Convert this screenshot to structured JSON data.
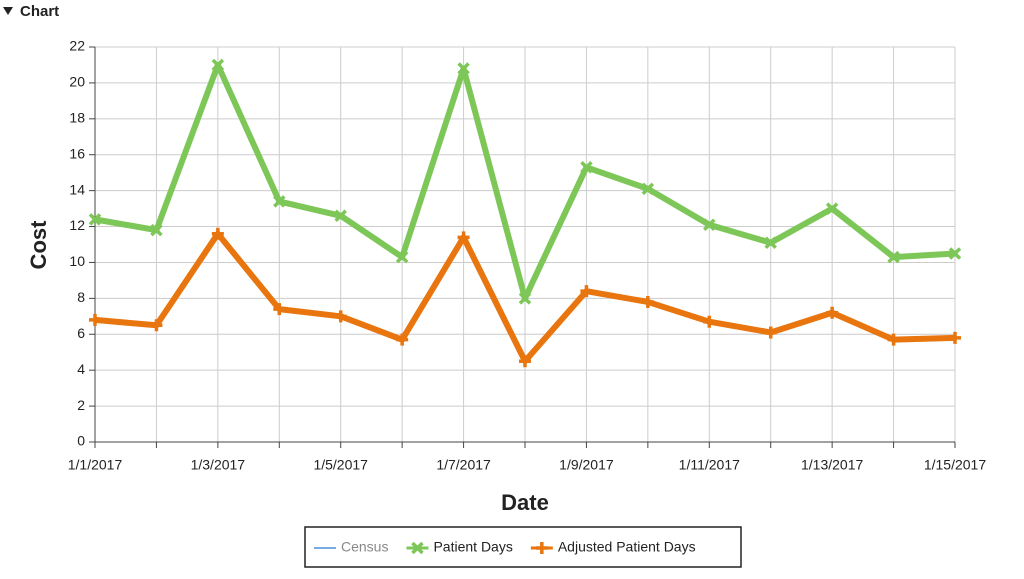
{
  "header": {
    "title": "Chart"
  },
  "chart_data": {
    "type": "line",
    "xlabel": "Date",
    "ylabel": "Cost",
    "categories": [
      "1/1/2017",
      null,
      "1/3/2017",
      null,
      "1/5/2017",
      null,
      "1/7/2017",
      null,
      "1/9/2017",
      null,
      "1/11/2017",
      null,
      "1/13/2017",
      null,
      "1/15/2017"
    ],
    "ylim": [
      0,
      22
    ],
    "yticks": [
      0,
      2,
      4,
      6,
      8,
      10,
      12,
      14,
      16,
      18,
      20,
      22
    ],
    "grid": true,
    "legend": "bottom",
    "series": [
      {
        "name": "Census",
        "color": "#4a90d9",
        "visible": false,
        "values": [
          null,
          null,
          null,
          null,
          null,
          null,
          null,
          null,
          null,
          null,
          null,
          null,
          null,
          null,
          null
        ]
      },
      {
        "name": "Patient Days",
        "color": "#7dc758",
        "marker": "x",
        "values": [
          12.4,
          11.8,
          21.0,
          13.4,
          12.6,
          10.3,
          20.8,
          8.0,
          15.3,
          14.1,
          12.1,
          11.1,
          13.0,
          10.3,
          10.5
        ]
      },
      {
        "name": "Adjusted Patient Days",
        "color": "#e8750e",
        "marker": "+",
        "values": [
          6.8,
          6.5,
          11.6,
          7.4,
          7.0,
          5.7,
          11.4,
          4.5,
          8.4,
          7.8,
          6.7,
          6.1,
          7.2,
          5.7,
          5.8
        ]
      }
    ]
  }
}
